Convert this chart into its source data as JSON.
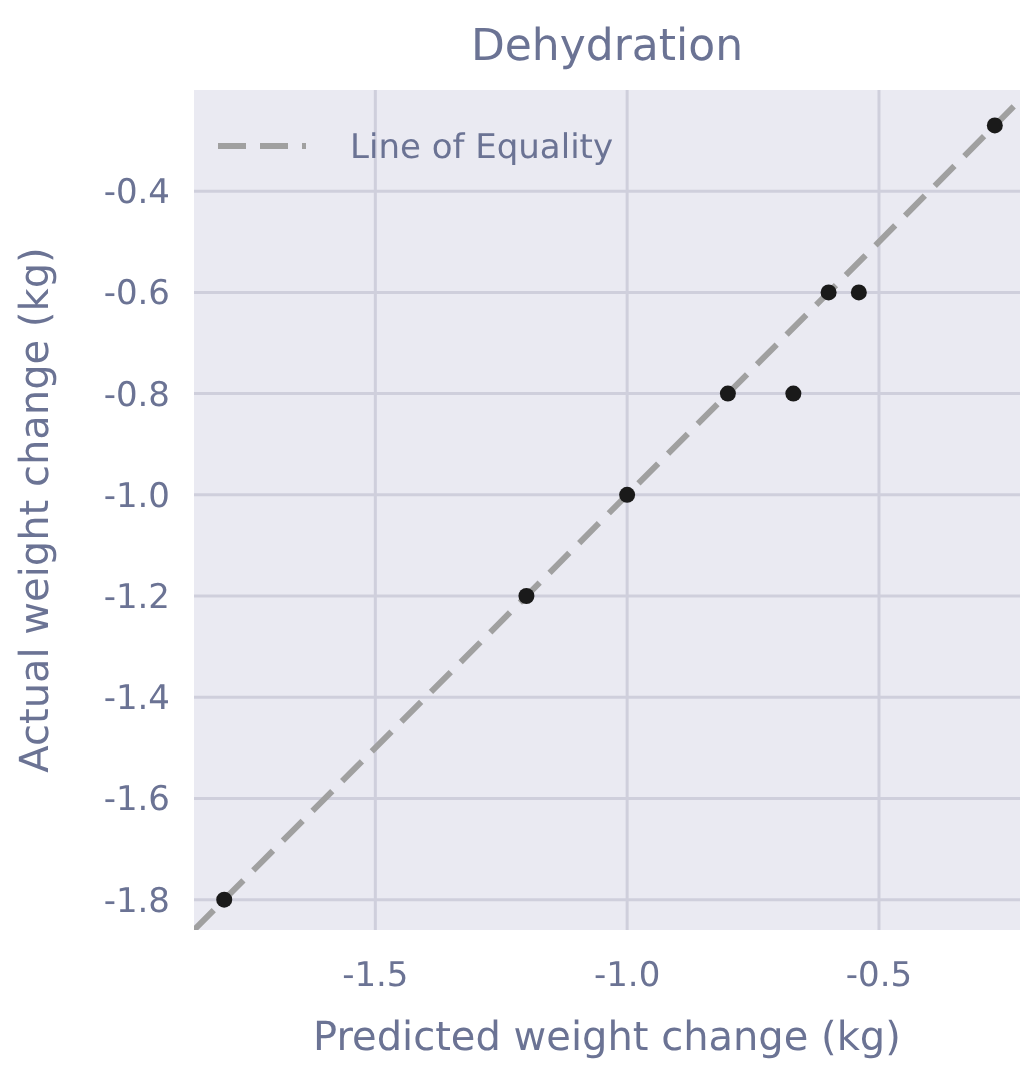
{
  "chart_data": {
    "type": "scatter",
    "title": "Dehydration",
    "xlabel": "Predicted weight change (kg)",
    "ylabel": "Actual weight change (kg)",
    "xlim": [
      -1.86,
      -0.22
    ],
    "ylim": [
      -1.86,
      -0.2
    ],
    "xticks": [
      -1.5,
      {
        "value": -1,
        "label": "-1.0"
      },
      -0.5
    ],
    "yticks": [
      -1.8,
      -1.6,
      -1.4,
      -1.2,
      {
        "value": -1,
        "label": "-1.0"
      },
      -0.8,
      -0.6,
      -0.4
    ],
    "grid": true,
    "legend": "top left",
    "series": [
      {
        "name": "Line of Equality",
        "type": "line",
        "color": "#a0a0a0",
        "line_style": "dashed",
        "marker": "none",
        "x": [
          -1.86,
          -0.22
        ],
        "values": [
          -1.86,
          -0.22
        ]
      },
      {
        "color": "#1a1a1a",
        "marker": "circle",
        "x": [
          -1.8,
          -1.2,
          -1.0,
          -0.8,
          -0.67,
          -0.6,
          -0.54,
          -0.27
        ],
        "values": [
          -1.8,
          -1.2,
          -1.0,
          -0.8,
          -0.8,
          -0.6,
          -0.6,
          -0.27
        ]
      }
    ]
  }
}
